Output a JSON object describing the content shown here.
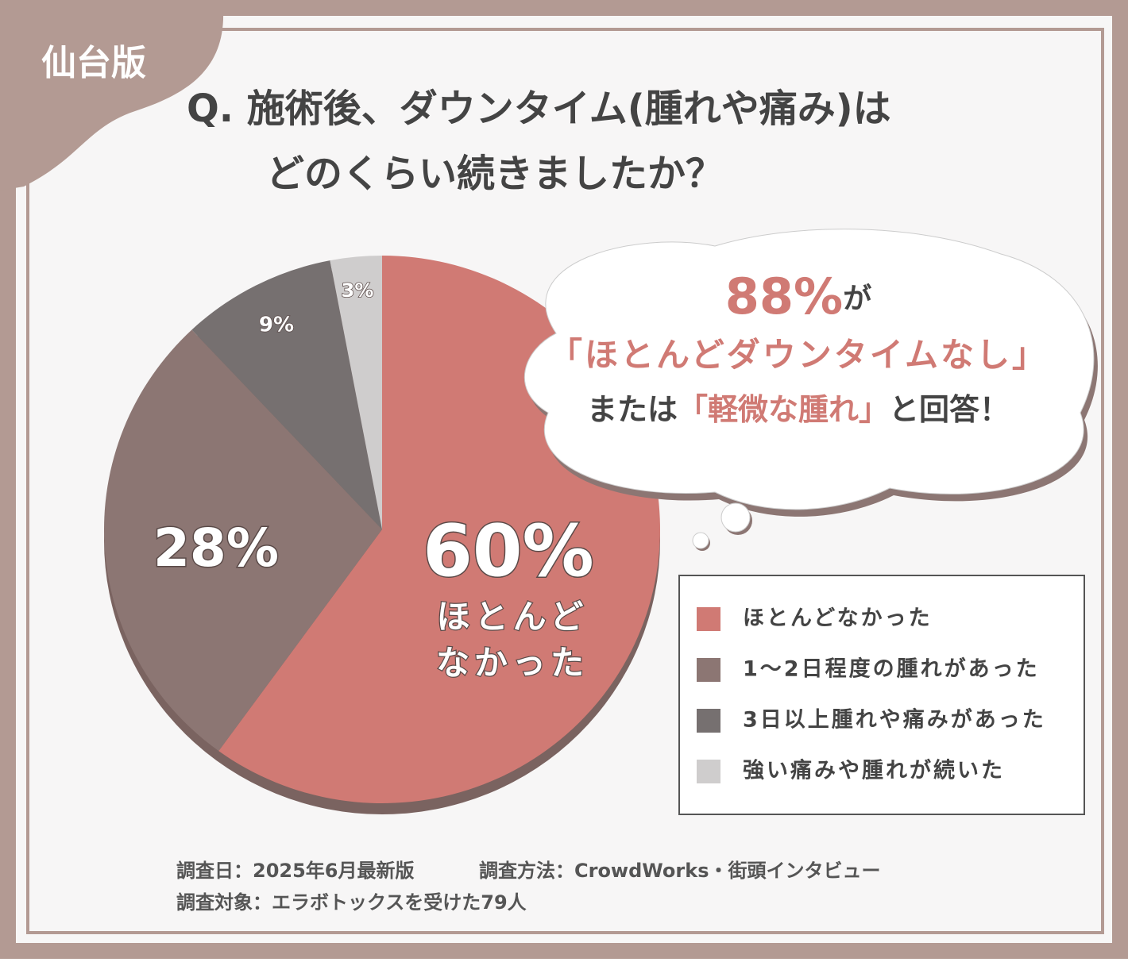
{
  "badge": "仙台版",
  "title": [
    "Q. 施術後、ダウンタイム(腫れや痛み)は",
    "どのくらい続きましたか？"
  ],
  "callout": {
    "line1": [
      "88%",
      "が"
    ],
    "line2": "「ほとんどダウンタイムなし」",
    "line3": [
      "または",
      "「軽微な腫れ」",
      "と回答！"
    ]
  },
  "chart_data": {
    "type": "pie",
    "categories": [
      "ほとんどなかった",
      "1～2日程度の腫れがあった",
      "3日以上腫れや痛みがあった",
      "強い痛みや腫れが続いた"
    ],
    "values": [
      60,
      28,
      9,
      3
    ],
    "value_labels": [
      "60%",
      "28%",
      "9%",
      "3%"
    ],
    "colors": [
      "#d07a74",
      "#8c7673",
      "#767070",
      "#cfcdcd"
    ],
    "slice_note": [
      "ほとんど",
      "なかった"
    ],
    "legend": "right"
  },
  "footer": [
    "調査日：2025年6月最新版",
    "調査方法：CrowdWorks・街頭インタビュー",
    "調査対象：エラボトックスを受けた79人"
  ]
}
